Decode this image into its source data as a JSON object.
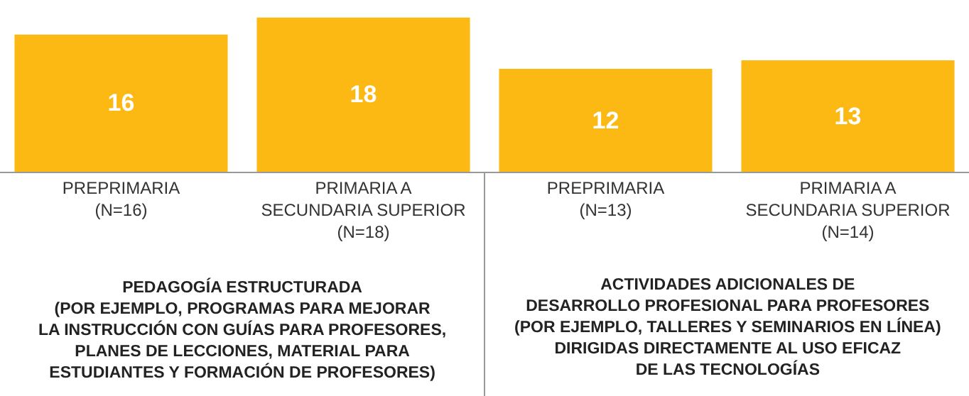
{
  "chart_data": {
    "type": "bar",
    "data_labels": true,
    "categories": [
      "PREPRIMARIA\n(N=16)",
      "PRIMARIA A\nSECUNDARIA SUPERIOR\n(N=18)",
      "PREPRIMARIA\n(N=13)",
      "PRIMARIA A\nSECUNDARIA SUPERIOR\n(N=14)"
    ],
    "values": [
      16,
      18,
      12,
      13
    ],
    "color": "#fdb913",
    "annotations": [
      "PEDAGOGÍA ESTRUCTURADA\n(POR EJEMPLO, PROGRAMAS PARA MEJORAR\nLA INSTRUCCIÓN CON GUÍAS PARA PROFESORES,\nPLANES DE LECCIONES, MATERIAL PARA\nESTUDIANTES Y FORMACIÓN DE PROFESORES)",
      "ACTIVIDADES ADICIONALES DE\nDESARROLLO PROFESIONAL PARA PROFESORES\n(POR EJEMPLO, TALLERES Y SEMINARIOS EN LÍNEA)\nDIRIGIDAS DIRECTAMENTE AL USO EFICAZ\nDE LAS TECNOLOGÍAS"
    ]
  }
}
